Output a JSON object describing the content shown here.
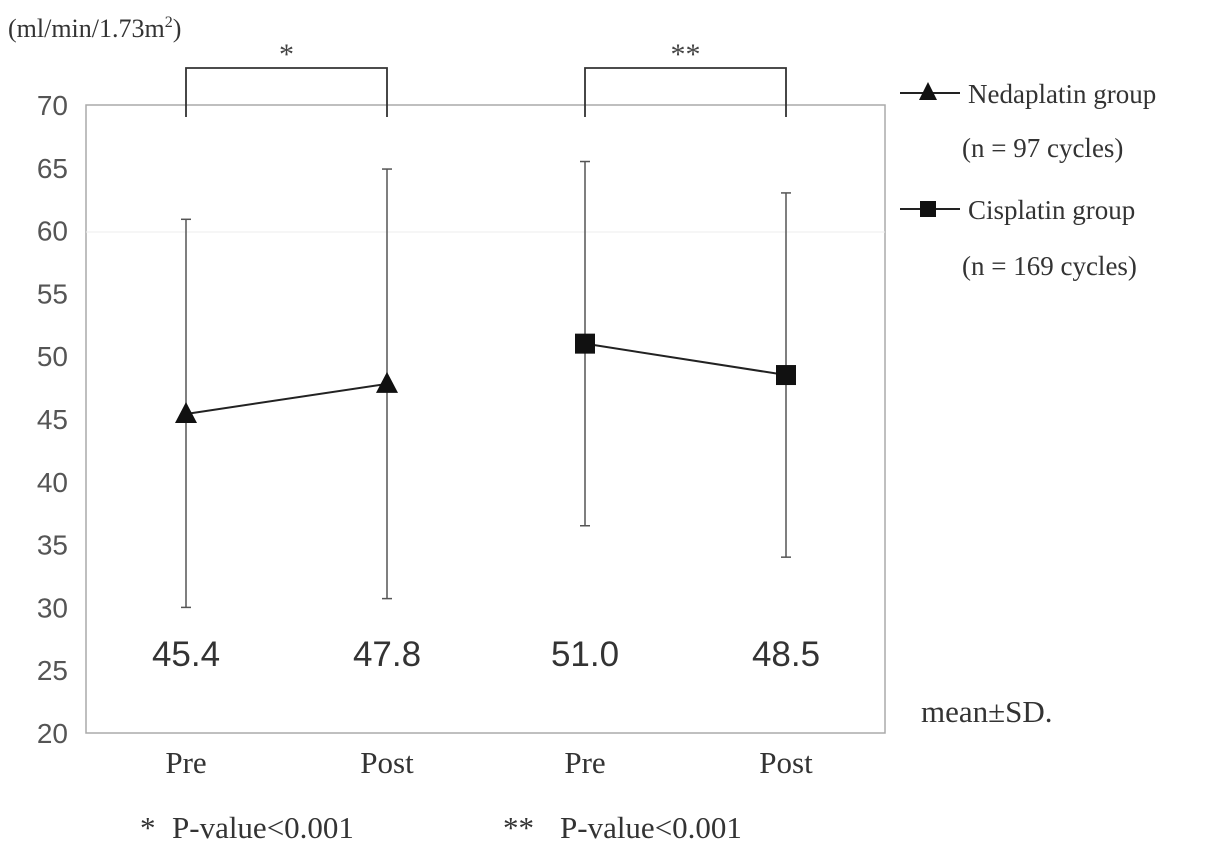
{
  "chart_data": {
    "type": "line",
    "ylabel_unit": "(ml/min/1.73m",
    "ylabel_unit_sup": "2",
    "ylabel_unit_close": ")",
    "ylim": [
      20,
      70
    ],
    "yticks": [
      20,
      25,
      30,
      35,
      40,
      45,
      50,
      55,
      60,
      65,
      70
    ],
    "categories": [
      "Pre",
      "Post",
      "Pre",
      "Post"
    ],
    "grid": false,
    "series": [
      {
        "name": "Nedaplatin group",
        "name_note": "(n = 97 cycles)",
        "marker": "triangle",
        "points": [
          {
            "x": "Pre",
            "y": 45.4,
            "y_low": 30.0,
            "y_high": 60.9,
            "label": "45.4"
          },
          {
            "x": "Post",
            "y": 47.8,
            "y_low": 30.7,
            "y_high": 64.9,
            "label": "47.8"
          }
        ]
      },
      {
        "name": "Cisplatin group",
        "name_note": "(n = 169 cycles)",
        "marker": "square",
        "points": [
          {
            "x": "Pre",
            "y": 51.0,
            "y_low": 36.5,
            "y_high": 65.5,
            "label": "51.0"
          },
          {
            "x": "Post",
            "y": 48.5,
            "y_low": 34.0,
            "y_high": 63.0,
            "label": "48.5"
          }
        ]
      }
    ],
    "significance": [
      {
        "series": "Nedaplatin group",
        "mark": "*"
      },
      {
        "series": "Cisplatin group",
        "mark": "**"
      }
    ],
    "annotations": {
      "stat_note": "mean±SD.",
      "footnote_1_mark": "*",
      "footnote_1_text": "P-value<0.001",
      "footnote_2_mark": "**",
      "footnote_2_text": "P-value<0.001"
    },
    "legend_position": "right"
  }
}
